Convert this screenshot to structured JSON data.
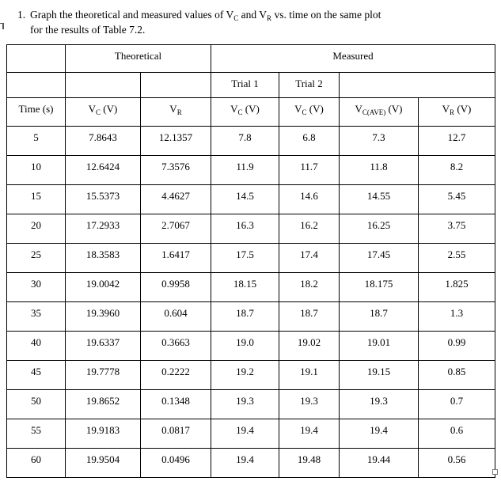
{
  "question": {
    "number": "1.",
    "t1": "Graph the theoretical and measured values of V",
    "s1": "C",
    "t2": " and V",
    "s2": "R",
    "t3": " vs. time on the same plot",
    "line2": "for the results of Table 7.2."
  },
  "table": {
    "group_headers": {
      "theoretical": "Theoretical",
      "measured": "Measured"
    },
    "trial_headers": {
      "trial1": "Trial 1",
      "trial2": "Trial 2"
    },
    "column_headers": [
      {
        "pre": "Time (s)",
        "sub": "",
        "post": ""
      },
      {
        "pre": "V",
        "sub": "C",
        "post": " (V)"
      },
      {
        "pre": "V",
        "sub": "R",
        "post": ""
      },
      {
        "pre": "V",
        "sub": "C",
        "post": " (V)"
      },
      {
        "pre": "V",
        "sub": "C",
        "post": " (V)"
      },
      {
        "pre": "V",
        "sub": "C(AVE)",
        "post": " (V)"
      },
      {
        "pre": "V",
        "sub": "R",
        "post": " (V)"
      }
    ],
    "rows": [
      [
        "5",
        "7.8643",
        "12.1357",
        "7.8",
        "6.8",
        "7.3",
        "12.7"
      ],
      [
        "10",
        "12.6424",
        "7.3576",
        "11.9",
        "11.7",
        "11.8",
        "8.2"
      ],
      [
        "15",
        "15.5373",
        "4.4627",
        "14.5",
        "14.6",
        "14.55",
        "5.45"
      ],
      [
        "20",
        "17.2933",
        "2.7067",
        "16.3",
        "16.2",
        "16.25",
        "3.75"
      ],
      [
        "25",
        "18.3583",
        "1.6417",
        "17.5",
        "17.4",
        "17.45",
        "2.55"
      ],
      [
        "30",
        "19.0042",
        "0.9958",
        "18.15",
        "18.2",
        "18.175",
        "1.825"
      ],
      [
        "35",
        "19.3960",
        "0.604",
        "18.7",
        "18.7",
        "18.7",
        "1.3"
      ],
      [
        "40",
        "19.6337",
        "0.3663",
        "19.0",
        "19.02",
        "19.01",
        "0.99"
      ],
      [
        "45",
        "19.7778",
        "0.2222",
        "19.2",
        "19.1",
        "19.15",
        "0.85"
      ],
      [
        "50",
        "19.8652",
        "0.1348",
        "19.3",
        "19.3",
        "19.3",
        "0.7"
      ],
      [
        "55",
        "19.9183",
        "0.0817",
        "19.4",
        "19.4",
        "19.4",
        "0.6"
      ],
      [
        "60",
        "19.9504",
        "0.0496",
        "19.4",
        "19.48",
        "19.44",
        "0.56"
      ]
    ]
  }
}
